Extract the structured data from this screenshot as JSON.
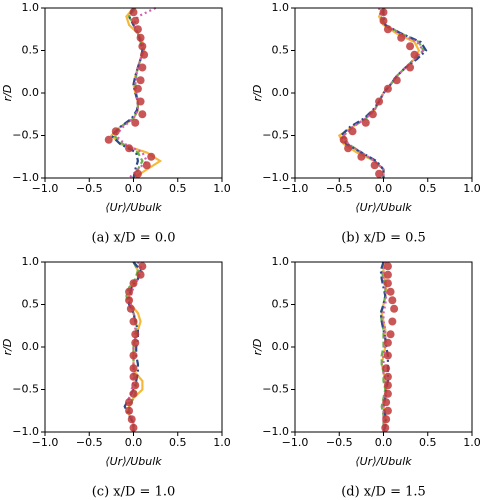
{
  "chart_data": [
    {
      "type": "line",
      "caption": "(a) x/D = 0.0",
      "xlabel": "⟨Ur⟩/Ubulk",
      "ylabel": "r/D",
      "xlim": [
        -1,
        1
      ],
      "ylim": [
        -1,
        1
      ],
      "xticks": [
        {
          "value": -1,
          "label": "−1.0"
        },
        {
          "value": -0.5,
          "label": "−0.5"
        },
        {
          "value": 0,
          "label": "0.0"
        },
        {
          "value": 0.5,
          "label": "0.5"
        },
        {
          "value": 1,
          "label": "1.0"
        }
      ],
      "yticks": [
        {
          "value": -1,
          "label": "−1.0"
        },
        {
          "value": -0.5,
          "label": "−0.5"
        },
        {
          "value": 0,
          "label": "0.0"
        },
        {
          "value": 0.5,
          "label": "0.5"
        },
        {
          "value": 1,
          "label": "1.0"
        }
      ],
      "r": [
        1,
        0.9,
        0.8,
        0.7,
        0.6,
        0.5,
        0.4,
        0.3,
        0.2,
        0.1,
        0,
        -0.1,
        -0.2,
        -0.3,
        -0.4,
        -0.5,
        -0.6,
        -0.7,
        -0.8,
        -0.9,
        -1
      ],
      "series": [
        {
          "style": "solid",
          "color": "#f5b83d",
          "values": [
            0,
            -0.08,
            -0.05,
            0.05,
            0.1,
            0.12,
            0.08,
            0.05,
            0.02,
            0,
            0.02,
            0.05,
            0.05,
            0,
            -0.15,
            -0.25,
            -0.15,
            0.15,
            0.3,
            0.15,
            0
          ]
        },
        {
          "style": "dashed",
          "color": "#6ab04c",
          "values": [
            0.02,
            -0.05,
            0,
            0.05,
            0.08,
            0.1,
            0.08,
            0.05,
            0.03,
            0.02,
            0.03,
            0.05,
            0.05,
            0,
            -0.15,
            -0.22,
            -0.12,
            0.05,
            0.1,
            0.05,
            0
          ]
        },
        {
          "style": "dashdot",
          "color": "#2b4a8a",
          "values": [
            0,
            -0.05,
            0,
            0.05,
            0.08,
            0.1,
            0.08,
            0.05,
            0.02,
            0,
            0.02,
            0.05,
            0.04,
            -0.02,
            -0.15,
            -0.25,
            -0.15,
            0.03,
            0.05,
            0.02,
            0
          ]
        },
        {
          "style": "dotted",
          "color": "#d65db1",
          "values": [
            0.25,
            0.05,
            0,
            0.05,
            0.1,
            0.12,
            0.08,
            0.05,
            0.03,
            0.02,
            0.03,
            0.05,
            0.05,
            0,
            -0.12,
            -0.2,
            -0.1,
            0.1,
            0.15,
            0.05,
            -0.05
          ]
        },
        {
          "style": "markers",
          "color": "#c0393b",
          "r": [
            0.95,
            0.85,
            0.75,
            0.65,
            0.55,
            0.45,
            0.3,
            0.15,
            0.05,
            -0.1,
            -0.25,
            -0.35,
            -0.45,
            -0.55,
            -0.65,
            -0.75,
            -0.85,
            -0.95
          ],
          "values": [
            0,
            0.02,
            0.05,
            0.08,
            0.1,
            0.12,
            0.1,
            0.08,
            0.05,
            0.08,
            0.1,
            0.02,
            -0.2,
            -0.28,
            -0.05,
            0.2,
            0.15,
            0.05
          ]
        }
      ]
    },
    {
      "type": "line",
      "caption": "(b) x/D = 0.5",
      "xlabel": "⟨Ur⟩/Ubulk",
      "ylabel": "r/D",
      "xlim": [
        -1,
        1
      ],
      "ylim": [
        -1,
        1
      ],
      "xticks": [
        {
          "value": -1,
          "label": "−1.0"
        },
        {
          "value": -0.5,
          "label": "−0.5"
        },
        {
          "value": 0,
          "label": "0.0"
        },
        {
          "value": 0.5,
          "label": "0.5"
        },
        {
          "value": 1,
          "label": "1.0"
        }
      ],
      "yticks": [
        {
          "value": -1,
          "label": "−1.0"
        },
        {
          "value": -0.5,
          "label": "−0.5"
        },
        {
          "value": 0,
          "label": "0.0"
        },
        {
          "value": 0.5,
          "label": "0.5"
        },
        {
          "value": 1,
          "label": "1.0"
        }
      ],
      "r": [
        1,
        0.9,
        0.8,
        0.7,
        0.6,
        0.5,
        0.4,
        0.3,
        0.2,
        0.1,
        0,
        -0.1,
        -0.2,
        -0.3,
        -0.4,
        -0.5,
        -0.6,
        -0.7,
        -0.8,
        -0.9,
        -1
      ],
      "series": [
        {
          "style": "solid",
          "color": "#f5b83d",
          "values": [
            0,
            -0.05,
            0,
            0.15,
            0.35,
            0.4,
            0.35,
            0.25,
            0.15,
            0.08,
            0,
            -0.05,
            -0.1,
            -0.2,
            -0.35,
            -0.5,
            -0.45,
            -0.3,
            -0.1,
            0,
            0
          ]
        },
        {
          "style": "dashed",
          "color": "#6ab04c",
          "values": [
            0,
            -0.03,
            0.02,
            0.2,
            0.4,
            0.45,
            0.35,
            0.25,
            0.15,
            0.08,
            0,
            -0.05,
            -0.1,
            -0.2,
            -0.35,
            -0.45,
            -0.4,
            -0.25,
            -0.1,
            0,
            0
          ]
        },
        {
          "style": "dashdot",
          "color": "#2b4a8a",
          "values": [
            0,
            0,
            0.02,
            0.2,
            0.42,
            0.48,
            0.38,
            0.25,
            0.15,
            0.08,
            0,
            -0.05,
            -0.12,
            -0.22,
            -0.38,
            -0.48,
            -0.42,
            -0.25,
            -0.08,
            0,
            0
          ]
        },
        {
          "style": "dotted",
          "color": "#d65db1",
          "values": [
            -0.05,
            -0.03,
            0.02,
            0.18,
            0.38,
            0.45,
            0.35,
            0.25,
            0.15,
            0.08,
            0,
            -0.05,
            -0.1,
            -0.2,
            -0.35,
            -0.45,
            -0.4,
            -0.25,
            -0.1,
            0,
            0
          ]
        },
        {
          "style": "markers",
          "color": "#c0393b",
          "r": [
            0.95,
            0.85,
            0.75,
            0.65,
            0.55,
            0.45,
            0.3,
            0.15,
            0.05,
            -0.1,
            -0.25,
            -0.35,
            -0.45,
            -0.55,
            -0.65,
            -0.75,
            -0.85,
            -0.95
          ],
          "values": [
            0,
            0,
            0.05,
            0.2,
            0.3,
            0.35,
            0.3,
            0.15,
            0.05,
            -0.05,
            -0.12,
            -0.2,
            -0.35,
            -0.45,
            -0.4,
            -0.25,
            -0.1,
            -0.05
          ]
        }
      ]
    },
    {
      "type": "line",
      "caption": "(c) x/D = 1.0",
      "xlabel": "⟨Ur⟩/Ubulk",
      "ylabel": "r/D",
      "xlim": [
        -1,
        1
      ],
      "ylim": [
        -1,
        1
      ],
      "xticks": [
        {
          "value": -1,
          "label": "−1.0"
        },
        {
          "value": -0.5,
          "label": "−0.5"
        },
        {
          "value": 0,
          "label": "0.0"
        },
        {
          "value": 0.5,
          "label": "0.5"
        },
        {
          "value": 1,
          "label": "1.0"
        }
      ],
      "yticks": [
        {
          "value": -1,
          "label": "−1.0"
        },
        {
          "value": -0.5,
          "label": "−0.5"
        },
        {
          "value": 0,
          "label": "0.0"
        },
        {
          "value": 0.5,
          "label": "0.5"
        },
        {
          "value": 1,
          "label": "1.0"
        }
      ],
      "r": [
        1,
        0.9,
        0.8,
        0.7,
        0.6,
        0.5,
        0.4,
        0.3,
        0.2,
        0.1,
        0,
        -0.1,
        -0.2,
        -0.3,
        -0.4,
        -0.5,
        -0.6,
        -0.7,
        -0.8,
        -0.9,
        -1
      ],
      "series": [
        {
          "style": "solid",
          "color": "#f5b83d",
          "values": [
            0,
            0.05,
            0.05,
            -0.02,
            -0.05,
            -0.03,
            0.05,
            0.08,
            0.05,
            0.02,
            0,
            0,
            0,
            0.02,
            0.1,
            0.1,
            0,
            -0.05,
            -0.05,
            0,
            0
          ]
        },
        {
          "style": "dashed",
          "color": "#6ab04c",
          "values": [
            0,
            0.05,
            0.02,
            -0.05,
            -0.08,
            -0.05,
            0,
            0.03,
            0.03,
            0.02,
            0,
            0,
            0,
            0,
            0.03,
            0.03,
            0,
            -0.05,
            -0.05,
            0,
            0
          ]
        },
        {
          "style": "dashdot",
          "color": "#2b4a8a",
          "values": [
            0,
            0.08,
            0.05,
            -0.02,
            -0.05,
            -0.05,
            0,
            0.02,
            0.05,
            0.05,
            0.03,
            0.03,
            0.05,
            0.05,
            0.03,
            0,
            -0.05,
            -0.1,
            -0.05,
            0,
            0
          ]
        },
        {
          "style": "dotted",
          "color": "#d65db1",
          "values": [
            0.05,
            0.1,
            0.05,
            0,
            -0.03,
            -0.03,
            0,
            0.02,
            0.02,
            0.02,
            0,
            0,
            0,
            0,
            0,
            -0.02,
            -0.05,
            -0.05,
            -0.03,
            0,
            0
          ]
        },
        {
          "style": "markers",
          "color": "#c0393b",
          "r": [
            0.95,
            0.85,
            0.75,
            0.65,
            0.55,
            0.45,
            0.3,
            0.15,
            0.05,
            -0.1,
            -0.25,
            -0.35,
            -0.45,
            -0.55,
            -0.65,
            -0.75,
            -0.85,
            -0.95
          ],
          "values": [
            0.1,
            0.08,
            0,
            -0.05,
            -0.05,
            -0.03,
            0,
            0.02,
            0.02,
            0,
            0,
            0,
            0.02,
            0,
            -0.05,
            -0.05,
            -0.02,
            0
          ]
        }
      ]
    },
    {
      "type": "line",
      "caption": "(d) x/D = 1.5",
      "xlabel": "⟨Ur⟩/Ubulk",
      "ylabel": "r/D",
      "xlim": [
        -1,
        1
      ],
      "ylim": [
        -1,
        1
      ],
      "xticks": [
        {
          "value": -1,
          "label": "−1.0"
        },
        {
          "value": -0.5,
          "label": "−0.5"
        },
        {
          "value": 0,
          "label": "0.0"
        },
        {
          "value": 0.5,
          "label": "0.5"
        },
        {
          "value": 1,
          "label": "1.0"
        }
      ],
      "yticks": [
        {
          "value": -1,
          "label": "−1.0"
        },
        {
          "value": -0.5,
          "label": "−0.5"
        },
        {
          "value": 0,
          "label": "0.0"
        },
        {
          "value": 0.5,
          "label": "0.5"
        },
        {
          "value": 1,
          "label": "1.0"
        }
      ],
      "r": [
        1,
        0.9,
        0.8,
        0.7,
        0.6,
        0.5,
        0.4,
        0.3,
        0.2,
        0.1,
        0,
        -0.1,
        -0.2,
        -0.3,
        -0.4,
        -0.5,
        -0.6,
        -0.7,
        -0.8,
        -0.9,
        -1
      ],
      "series": [
        {
          "style": "solid",
          "color": "#f5b83d",
          "values": [
            0,
            0,
            0.02,
            0.03,
            0.02,
            0,
            -0.02,
            0,
            0.02,
            0.02,
            0.02,
            0,
            -0.02,
            0,
            0.02,
            0.03,
            0.02,
            0,
            0.02,
            0.02,
            0
          ]
        },
        {
          "style": "dashed",
          "color": "#6ab04c",
          "values": [
            0,
            -0.02,
            0,
            0.02,
            0.02,
            0,
            -0.03,
            -0.02,
            0,
            0,
            0,
            -0.02,
            -0.02,
            0,
            0,
            0.02,
            0,
            -0.02,
            0,
            0,
            0
          ]
        },
        {
          "style": "dashdot",
          "color": "#2b4a8a",
          "values": [
            0,
            -0.03,
            -0.02,
            0,
            0.02,
            0,
            -0.03,
            -0.02,
            0,
            0.02,
            0.03,
            0.05,
            0.05,
            0.05,
            0.05,
            0.03,
            0.02,
            0,
            0.02,
            0.03,
            0
          ]
        },
        {
          "style": "dotted",
          "color": "#d65db1",
          "values": [
            0.02,
            0,
            0,
            0.02,
            0.03,
            0.02,
            0,
            0,
            0.02,
            0.02,
            0.02,
            0,
            0,
            0,
            0.02,
            0.03,
            0.02,
            0,
            0,
            0,
            0
          ]
        },
        {
          "style": "markers",
          "color": "#c0393b",
          "r": [
            0.95,
            0.85,
            0.75,
            0.65,
            0.55,
            0.45,
            0.3,
            0.15,
            0.05,
            -0.1,
            -0.25,
            -0.35,
            -0.45,
            -0.55,
            -0.65,
            -0.75,
            -0.85,
            -0.95
          ],
          "values": [
            0.05,
            0.05,
            0.05,
            0.08,
            0.1,
            0.12,
            0.1,
            0.08,
            0.05,
            0.05,
            0.03,
            0.05,
            0.05,
            0.05,
            0.03,
            0.05,
            0.03,
            0.02
          ]
        }
      ]
    }
  ]
}
